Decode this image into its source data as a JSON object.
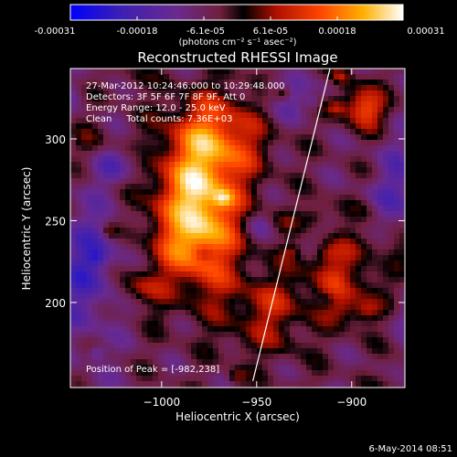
{
  "colorbar": {
    "tick_labels": [
      "-0.00031",
      "-0.00018",
      "-6.1e-05",
      "6.1e-05",
      "0.00018",
      "0.00031"
    ],
    "units_label": "(photons cm⁻² s⁻¹ asec⁻²)",
    "range": [
      -0.00031,
      0.00031
    ],
    "colormap": "blue-purple-red-yellow-white"
  },
  "chart_data": {
    "type": "heatmap",
    "title": "Reconstructed RHESSI Image",
    "xlabel": "Heliocentric X (arcsec)",
    "ylabel": "Heliocentric Y (arcsec)",
    "xlim": [
      -1048,
      -872
    ],
    "ylim": [
      148,
      343
    ],
    "x_ticks": [
      -1000,
      -950,
      -900
    ],
    "x_tick_labels": [
      "−1000",
      "−950",
      "−900"
    ],
    "y_ticks": [
      200,
      250,
      300
    ],
    "y_tick_labels": [
      "200",
      "250",
      "300"
    ],
    "limb_line": {
      "x": [
        -952,
        -911
      ],
      "y": [
        152,
        345
      ]
    },
    "peak": {
      "x": -982,
      "y": 238
    },
    "annotations": [
      "27-Mar-2012 10:24:46.000 to 10:29:48.000",
      "Detectors: 3F 5F 6F 7F 8F 9F, Att 0",
      "Energy Range: 12.0 - 25.0 keV",
      "Clean     Total counts: 7.36E+03"
    ],
    "peak_label": "Position of Peak = [-982,238]"
  },
  "footer": {
    "date": "6-May-2014 08:51"
  }
}
